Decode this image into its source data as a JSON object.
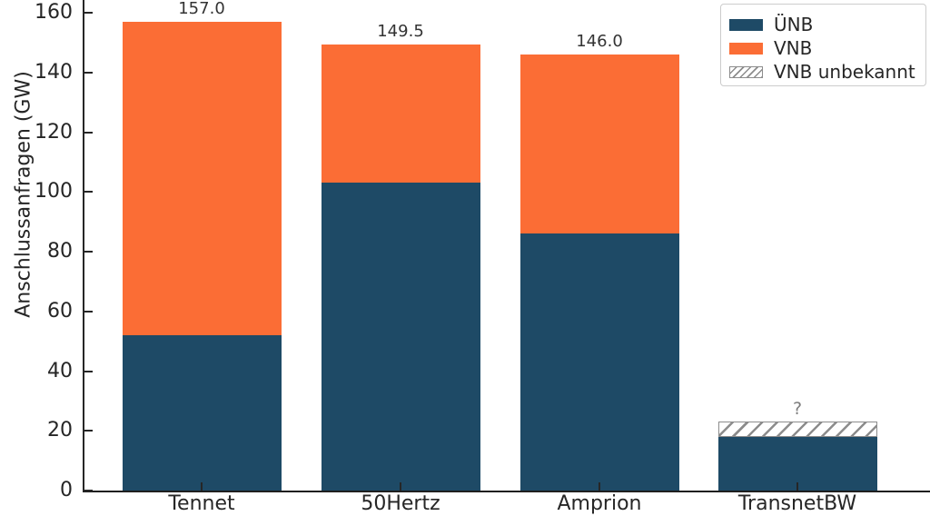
{
  "chart_data": {
    "type": "bar",
    "stacked": true,
    "title": "",
    "xlabel": "",
    "ylabel": "Anschlussanfragen (GW)",
    "categories": [
      "Tennet",
      "50Hertz",
      "Amprion",
      "TransnetBW"
    ],
    "series": [
      {
        "name": "ÜNB",
        "color": "#1e4a66",
        "hatch": false,
        "values": [
          52,
          103,
          86,
          18
        ]
      },
      {
        "name": "VNB",
        "color": "#fb6d35",
        "hatch": false,
        "values": [
          105,
          46.5,
          60,
          0
        ]
      },
      {
        "name": "VNB unbekannt",
        "color": "#ffffff",
        "hatch": true,
        "hatch_color": "#8c8c8c",
        "values": [
          0,
          0,
          0,
          5
        ]
      }
    ],
    "bar_totals": [
      157.0,
      149.5,
      146.0,
      23
    ],
    "bar_total_labels": [
      "157.0",
      "149.5",
      "146.0",
      "?"
    ],
    "yticks": [
      0,
      20,
      40,
      60,
      80,
      100,
      120,
      140,
      160
    ],
    "ylim": [
      0,
      164.3
    ],
    "grid": false,
    "tick_direction": "in",
    "legend": {
      "position": "upper right",
      "entries": [
        "ÜNB",
        "VNB",
        "VNB unbekannt"
      ]
    },
    "colors": {
      "axis": "#262626",
      "value_label": "#333333",
      "unknown_label": "#7d7d7d",
      "legend_border": "#cccccc"
    }
  }
}
